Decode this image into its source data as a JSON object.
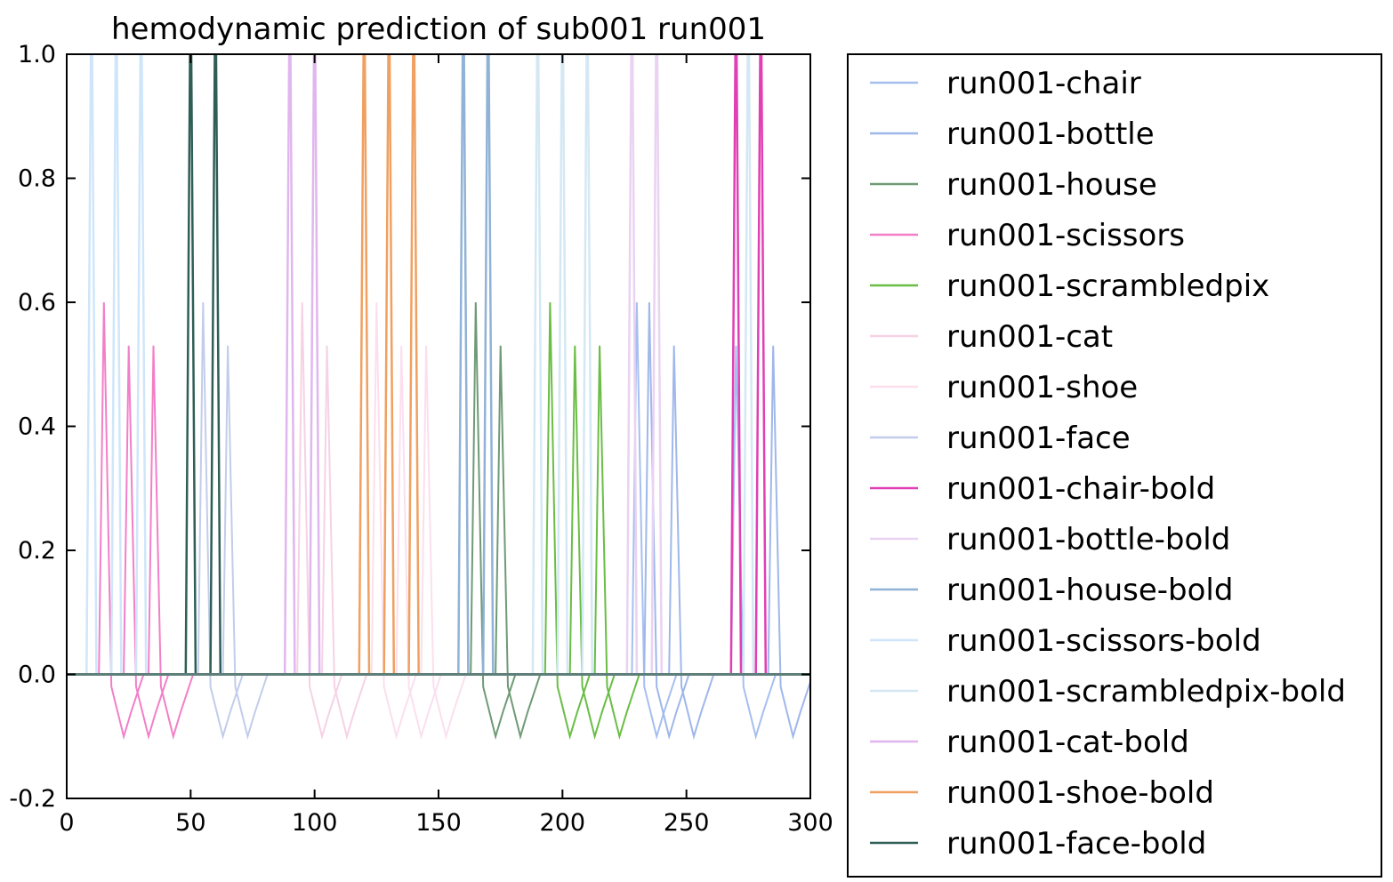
{
  "chart_data": {
    "type": "line",
    "title": "hemodynamic prediction of sub001 run001",
    "xlabel": "",
    "ylabel": "",
    "xlim": [
      0,
      300
    ],
    "ylim": [
      -0.2,
      1.0
    ],
    "x_ticks": [
      0,
      50,
      100,
      150,
      200,
      250,
      300
    ],
    "y_ticks": [
      -0.2,
      0.0,
      0.2,
      0.4,
      0.6,
      0.8,
      1.0
    ],
    "grid": false,
    "legend_placement": "outside-right",
    "series": [
      {
        "name": "run001-chair",
        "color": "#a6bff0",
        "onsets": [
          230,
          270
        ],
        "shape": "hrf"
      },
      {
        "name": "run001-bottle",
        "color": "#9fb7ea",
        "onsets": [
          235,
          245,
          285
        ],
        "shape": "hrf"
      },
      {
        "name": "run001-house",
        "color": "#6f9a76",
        "onsets": [
          165,
          175
        ],
        "shape": "hrf"
      },
      {
        "name": "run001-scissors",
        "color": "#f27fc8",
        "onsets": [
          15,
          25,
          35
        ],
        "shape": "hrf"
      },
      {
        "name": "run001-scrambledpix",
        "color": "#6abd45",
        "onsets": [
          195,
          205,
          215
        ],
        "shape": "hrf"
      },
      {
        "name": "run001-cat",
        "color": "#f6d2e4",
        "onsets": [
          95,
          105
        ],
        "shape": "hrf"
      },
      {
        "name": "run001-shoe",
        "color": "#fbdfee",
        "onsets": [
          125,
          135,
          145
        ],
        "shape": "hrf"
      },
      {
        "name": "run001-face",
        "color": "#c2cdeb",
        "onsets": [
          55,
          65
        ],
        "shape": "hrf"
      },
      {
        "name": "run001-chair-bold",
        "color": "#e040b4",
        "onsets": [
          270,
          280
        ],
        "shape": "box"
      },
      {
        "name": "run001-bottle-bold",
        "color": "#ead2f2",
        "onsets": [
          228,
          238
        ],
        "shape": "box"
      },
      {
        "name": "run001-house-bold",
        "color": "#8fb2d6",
        "onsets": [
          160,
          170
        ],
        "shape": "box"
      },
      {
        "name": "run001-scissors-bold",
        "color": "#cfe6fa",
        "onsets": [
          10,
          20,
          30
        ],
        "shape": "box"
      },
      {
        "name": "run001-scrambledpix-bold",
        "color": "#d4e8f4",
        "onsets": [
          190,
          200,
          210,
          275
        ],
        "shape": "box"
      },
      {
        "name": "run001-cat-bold",
        "color": "#e0b6ee",
        "onsets": [
          90,
          100
        ],
        "shape": "box"
      },
      {
        "name": "run001-shoe-bold",
        "color": "#f0a060",
        "onsets": [
          120,
          130,
          140
        ],
        "shape": "box"
      },
      {
        "name": "run001-face-bold",
        "color": "#2e5e55",
        "onsets": [
          50,
          60
        ],
        "shape": "box"
      }
    ]
  }
}
